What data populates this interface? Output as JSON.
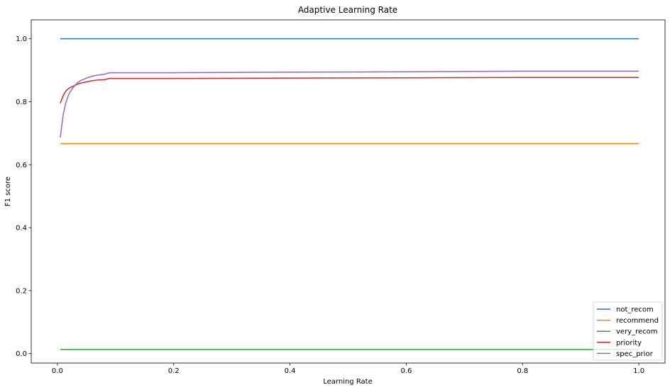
{
  "chart_data": {
    "type": "line",
    "title": "Adaptive Learning Rate",
    "xlabel": "Learning Rate",
    "ylabel": "F1 score",
    "xlim": [
      -0.045,
      1.045
    ],
    "ylim": [
      -0.03,
      1.06
    ],
    "xticks": [
      "0.0",
      "0.2",
      "0.4",
      "0.6",
      "0.8",
      "1.0"
    ],
    "yticks": [
      "0.0",
      "0.2",
      "0.4",
      "0.6",
      "0.8",
      "1.0"
    ],
    "grid": false,
    "legend_position": "lower right",
    "series": [
      {
        "name": "not_recom",
        "color": "#1f77b4",
        "x": [
          0.005,
          0.05,
          0.1,
          0.2,
          0.4,
          0.6,
          0.8,
          1.0
        ],
        "y": [
          1.0,
          1.0,
          1.0,
          1.0,
          1.0,
          1.0,
          1.0,
          1.0
        ]
      },
      {
        "name": "recommend",
        "color": "#ff7f0e",
        "x": [
          0.005,
          0.05,
          0.1,
          0.2,
          0.4,
          0.6,
          0.8,
          1.0
        ],
        "y": [
          0.667,
          0.667,
          0.667,
          0.667,
          0.667,
          0.667,
          0.667,
          0.667
        ]
      },
      {
        "name": "very_recom",
        "color": "#2ca02c",
        "x": [
          0.005,
          0.05,
          0.1,
          0.2,
          0.4,
          0.6,
          0.8,
          1.0
        ],
        "y": [
          0.013,
          0.013,
          0.013,
          0.013,
          0.013,
          0.013,
          0.013,
          0.013
        ]
      },
      {
        "name": "priority",
        "color": "#d62728",
        "x": [
          0.005,
          0.01,
          0.015,
          0.02,
          0.025,
          0.03,
          0.035,
          0.04,
          0.05,
          0.06,
          0.07,
          0.08,
          0.09,
          0.1,
          0.2,
          0.4,
          0.6,
          0.8,
          1.0
        ],
        "y": [
          0.795,
          0.82,
          0.835,
          0.843,
          0.848,
          0.852,
          0.856,
          0.859,
          0.863,
          0.867,
          0.869,
          0.87,
          0.874,
          0.874,
          0.874,
          0.875,
          0.876,
          0.877,
          0.877
        ]
      },
      {
        "name": "spec_prior",
        "color": "#9467bd",
        "x": [
          0.005,
          0.01,
          0.015,
          0.02,
          0.025,
          0.03,
          0.035,
          0.04,
          0.05,
          0.06,
          0.07,
          0.08,
          0.09,
          0.1,
          0.2,
          0.4,
          0.6,
          0.8,
          1.0
        ],
        "y": [
          0.686,
          0.76,
          0.8,
          0.825,
          0.84,
          0.852,
          0.861,
          0.867,
          0.875,
          0.881,
          0.885,
          0.887,
          0.892,
          0.892,
          0.892,
          0.894,
          0.895,
          0.897,
          0.897
        ]
      }
    ]
  }
}
